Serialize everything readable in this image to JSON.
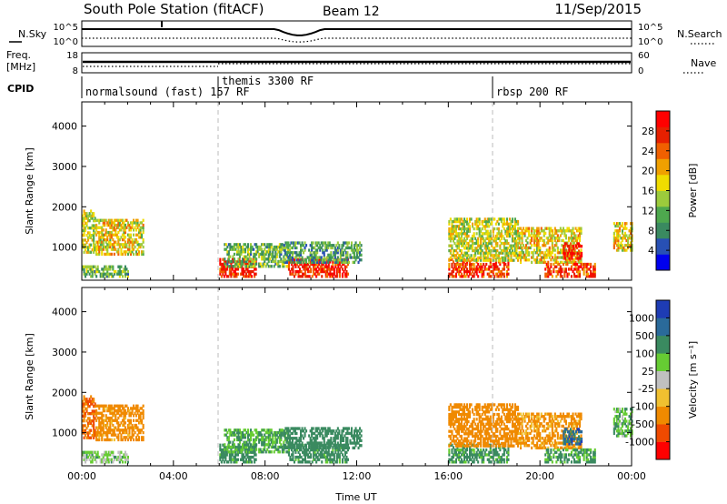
{
  "header": {
    "title": "South Pole Station (fitACF)",
    "beam": "Beam 12",
    "date": "11/Sep/2015"
  },
  "noise_panel": {
    "left_label": "N.Sky",
    "right_label": "N.Search",
    "left_ticks": [
      "10^5",
      "10^0"
    ],
    "right_ticks": [
      "10^5",
      "10^0"
    ]
  },
  "freq_panel": {
    "left_label_1": "Freq.",
    "left_label_2": "[MHz]",
    "right_label": "Nave",
    "left_ticks": [
      "18",
      "8"
    ],
    "right_ticks": [
      "60",
      "0"
    ]
  },
  "cpid": {
    "label": "CPID",
    "segments": [
      {
        "text": "normalsound (fast) 157 RF",
        "start_hour": 0
      },
      {
        "text": "themis 3300 RF",
        "start_hour": 6
      },
      {
        "text": "rbsp 200 RF",
        "start_hour": 18
      }
    ]
  },
  "chart_data": [
    {
      "type": "heatmap",
      "name": "power",
      "xlabel": "Time UT",
      "ylabel": "Slant Range [km]",
      "xlim": [
        0,
        24
      ],
      "ylim": [
        180,
        4600
      ],
      "yticks": [
        1000,
        2000,
        3000,
        4000
      ],
      "colorbar": {
        "label": "Power [dB]",
        "ticks": [
          "4",
          "8",
          "12",
          "16",
          "20",
          "24",
          "28"
        ],
        "colors": [
          "#0000ee",
          "#2850b4",
          "#3a8a60",
          "#4ea84e",
          "#9ccb3c",
          "#f0dc00",
          "#f0a000",
          "#f06000",
          "#e62000",
          "#ff0000"
        ]
      },
      "echo_regions": [
        {
          "t0": 0.0,
          "t1": 0.6,
          "r0": 850,
          "r1": 1900,
          "value": 16
        },
        {
          "t0": 0.6,
          "t1": 2.7,
          "r0": 800,
          "r1": 1650,
          "value": 18
        },
        {
          "t0": 0.0,
          "t1": 2.0,
          "r0": 250,
          "r1": 500,
          "value": 12
        },
        {
          "t0": 6.0,
          "t1": 7.6,
          "r0": 250,
          "r1": 700,
          "value": 28
        },
        {
          "t0": 6.2,
          "t1": 9.0,
          "r0": 500,
          "r1": 1050,
          "value": 12
        },
        {
          "t0": 9.0,
          "t1": 11.6,
          "r0": 250,
          "r1": 700,
          "value": 28
        },
        {
          "t0": 8.8,
          "t1": 12.2,
          "r0": 600,
          "r1": 1100,
          "value": 10
        },
        {
          "t0": 16.0,
          "t1": 18.6,
          "r0": 250,
          "r1": 700,
          "value": 26
        },
        {
          "t0": 16.0,
          "t1": 19.0,
          "r0": 650,
          "r1": 1700,
          "value": 16
        },
        {
          "t0": 19.0,
          "t1": 21.8,
          "r0": 600,
          "r1": 1500,
          "value": 18
        },
        {
          "t0": 20.2,
          "t1": 22.4,
          "r0": 250,
          "r1": 600,
          "value": 26
        },
        {
          "t0": 21.0,
          "t1": 21.8,
          "r0": 700,
          "r1": 1100,
          "value": 28
        },
        {
          "t0": 23.2,
          "t1": 24.0,
          "r0": 900,
          "r1": 1600,
          "value": 18
        }
      ]
    },
    {
      "type": "heatmap",
      "name": "velocity",
      "xlabel": "Time UT",
      "ylabel": "Slant Range [km]",
      "xlim": [
        0,
        24
      ],
      "ylim": [
        180,
        4600
      ],
      "yticks": [
        1000,
        2000,
        3000,
        4000
      ],
      "xticks": [
        "00:00",
        "04:00",
        "08:00",
        "12:00",
        "16:00",
        "20:00",
        "00:00"
      ],
      "colorbar": {
        "label": "Velocity [m s⁻¹]",
        "ticks": [
          "-1000",
          "-500",
          "-100",
          "-25",
          "25",
          "100",
          "500",
          "1000"
        ],
        "colors": [
          "#ff0000",
          "#f04a00",
          "#f08a00",
          "#f0c030",
          "#c0c0c0",
          "#66cc33",
          "#3a8a60",
          "#2a6a9a",
          "#1e3cb4"
        ]
      },
      "echo_regions": [
        {
          "t0": 0.0,
          "t1": 0.6,
          "r0": 850,
          "r1": 1900,
          "value": -500
        },
        {
          "t0": 0.6,
          "t1": 2.7,
          "r0": 800,
          "r1": 1650,
          "value": -200
        },
        {
          "t0": 0.0,
          "t1": 2.0,
          "r0": 250,
          "r1": 500,
          "value": 50
        },
        {
          "t0": 6.0,
          "t1": 7.6,
          "r0": 250,
          "r1": 700,
          "value": 200
        },
        {
          "t0": 6.2,
          "t1": 9.0,
          "r0": 500,
          "r1": 1050,
          "value": 100
        },
        {
          "t0": 9.0,
          "t1": 11.6,
          "r0": 250,
          "r1": 700,
          "value": 200
        },
        {
          "t0": 8.8,
          "t1": 12.2,
          "r0": 600,
          "r1": 1100,
          "value": 300
        },
        {
          "t0": 16.0,
          "t1": 18.6,
          "r0": 250,
          "r1": 700,
          "value": 150
        },
        {
          "t0": 16.0,
          "t1": 19.0,
          "r0": 650,
          "r1": 1700,
          "value": -300
        },
        {
          "t0": 19.0,
          "t1": 21.8,
          "r0": 600,
          "r1": 1500,
          "value": -150
        },
        {
          "t0": 20.2,
          "t1": 22.4,
          "r0": 250,
          "r1": 600,
          "value": 120
        },
        {
          "t0": 21.0,
          "t1": 21.8,
          "r0": 700,
          "r1": 1100,
          "value": 700
        },
        {
          "t0": 23.2,
          "t1": 24.0,
          "r0": 900,
          "r1": 1600,
          "value": 80
        }
      ]
    }
  ]
}
